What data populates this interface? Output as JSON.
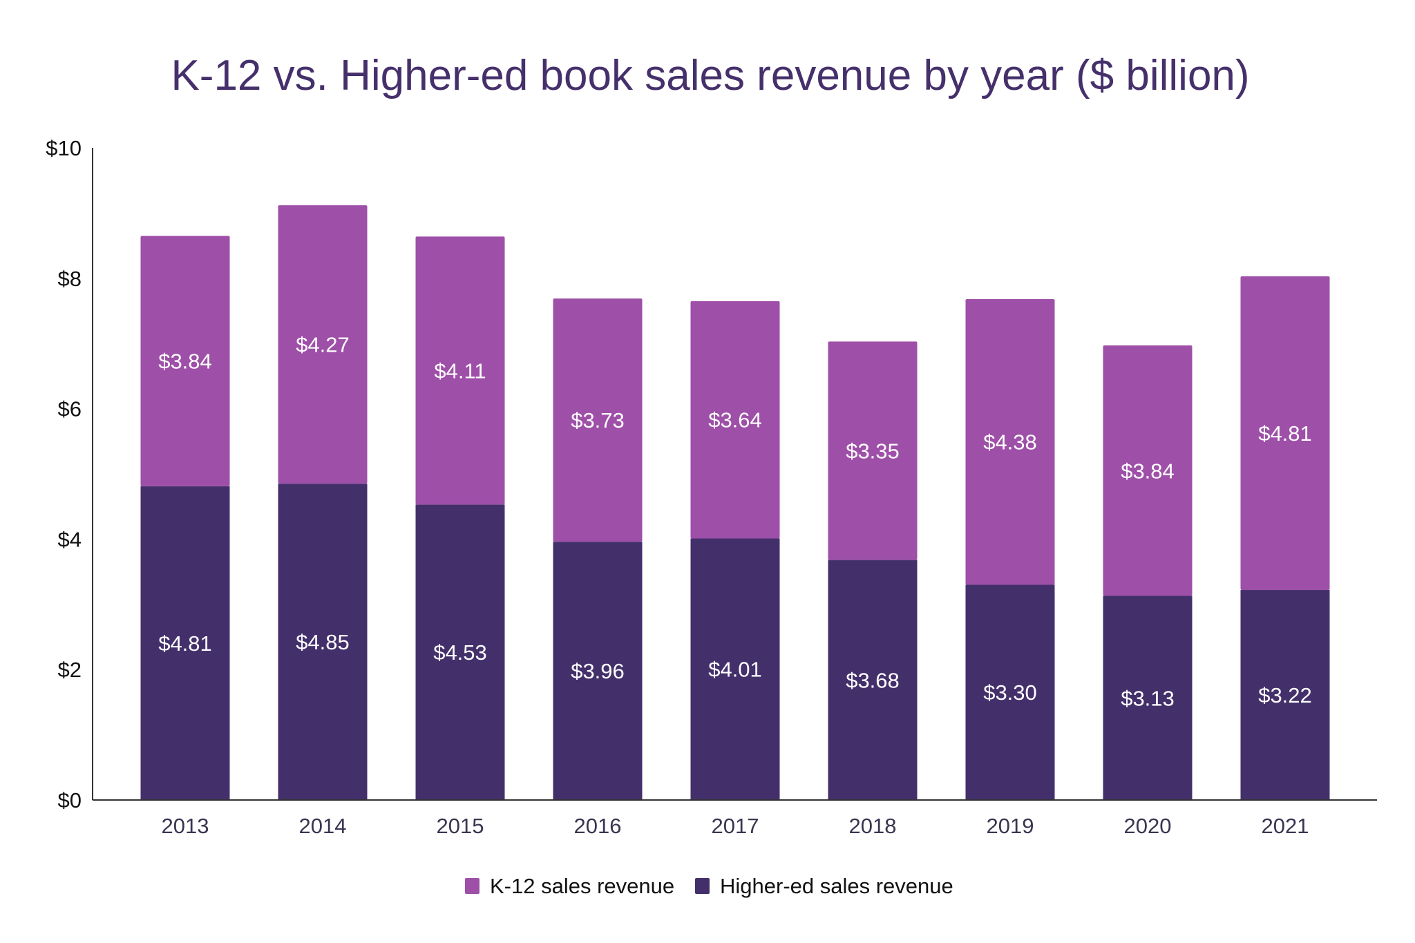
{
  "chart_data": {
    "type": "bar",
    "stacked": true,
    "title": "K-12 vs. Higher-ed book sales revenue by year ($ billion)",
    "xlabel": "",
    "ylabel": "",
    "categories": [
      "2013",
      "2014",
      "2015",
      "2016",
      "2017",
      "2018",
      "2019",
      "2020",
      "2021"
    ],
    "series": [
      {
        "name": "Higher-ed sales revenue",
        "color": "#43306b",
        "values": [
          4.81,
          4.85,
          4.53,
          3.96,
          4.01,
          3.68,
          3.3,
          3.13,
          3.22
        ],
        "labels": [
          "$4.81",
          "$4.85",
          "$4.53",
          "$3.96",
          "$4.01",
          "$3.68",
          "$3.30",
          "$3.13",
          "$3.22"
        ]
      },
      {
        "name": "K-12 sales revenue",
        "color": "#9e4fa8",
        "values": [
          3.84,
          4.27,
          4.11,
          3.73,
          3.64,
          3.35,
          4.38,
          3.84,
          4.81
        ],
        "labels": [
          "$3.84",
          "$4.27",
          "$4.11",
          "$3.73",
          "$3.64",
          "$3.35",
          "$4.38",
          "$3.84",
          "$4.81"
        ]
      }
    ],
    "ylim": [
      0,
      10
    ],
    "yticks": [
      "$0",
      "$2",
      "$4",
      "$6",
      "$8",
      "$10"
    ],
    "ytick_values": [
      0,
      2,
      4,
      6,
      8,
      10
    ],
    "grid": false,
    "legend": {
      "placement": "bottom",
      "items": [
        "K-12 sales revenue",
        "Higher-ed sales revenue"
      ]
    }
  }
}
